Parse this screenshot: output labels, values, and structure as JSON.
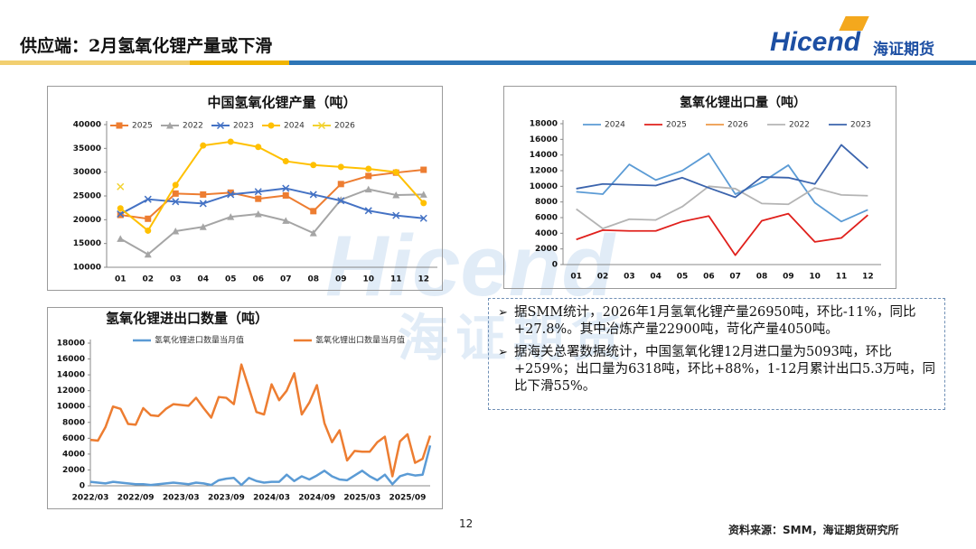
{
  "header": {
    "title": "供应端：2月氢氧化锂产量或下滑",
    "logo": "Hicend",
    "logo_cn": "海证期货"
  },
  "watermark": {
    "en": "Hicend",
    "cn": "海证期货"
  },
  "notes": [
    "据SMM统计，2026年1月氢氧化锂产量26950吨，环比-11%，同比+27.8%。其中冶炼产量22900吨，苛化产量4050吨。",
    "据海关总署数据统计，中国氢氧化锂12月进口量为5093吨，环比+259%；出口量为6318吨，环比+88%，1-12月累计出口5.3万吨，同比下滑55%。"
  ],
  "footer": {
    "page": "12",
    "source": "资料来源：SMM，海证期货研究所"
  },
  "chart_data": [
    {
      "type": "line",
      "title": "中国氢氧化锂产量（吨）",
      "categories": [
        "01",
        "02",
        "03",
        "04",
        "05",
        "06",
        "07",
        "08",
        "09",
        "10",
        "11",
        "12"
      ],
      "ylim": [
        10000,
        40000
      ],
      "yticks": [
        10000,
        15000,
        20000,
        25000,
        30000,
        35000,
        40000
      ],
      "series": [
        {
          "name": "2025",
          "color": "#ed7d31",
          "marker": "square",
          "values": [
            21000,
            20200,
            25500,
            25300,
            25700,
            24400,
            25100,
            21800,
            27500,
            29200,
            29900,
            30500
          ]
        },
        {
          "name": "2022",
          "color": "#a5a5a5",
          "marker": "triangle",
          "values": [
            16000,
            12700,
            17600,
            18500,
            20600,
            21200,
            19800,
            17200,
            24200,
            26400,
            25200,
            25300
          ]
        },
        {
          "name": "2023",
          "color": "#4472c4",
          "marker": "x",
          "values": [
            21200,
            24300,
            23800,
            23400,
            25300,
            25900,
            26600,
            25300,
            24000,
            21900,
            20900,
            20300
          ]
        },
        {
          "name": "2024",
          "color": "#ffc000",
          "marker": "circle",
          "values": [
            22400,
            17700,
            27300,
            35600,
            36400,
            35300,
            32300,
            31500,
            31100,
            30700,
            30000,
            23500
          ]
        },
        {
          "name": "2026",
          "color": "#f2d230",
          "marker": "x",
          "values": [
            26950,
            null,
            null,
            null,
            null,
            null,
            null,
            null,
            null,
            null,
            null,
            null
          ]
        }
      ]
    },
    {
      "type": "line",
      "title": "氢氧化锂出口量（吨）",
      "categories": [
        "01",
        "02",
        "03",
        "04",
        "05",
        "06",
        "07",
        "08",
        "09",
        "10",
        "11",
        "12"
      ],
      "ylim": [
        0,
        18000
      ],
      "yticks": [
        0,
        2000,
        4000,
        6000,
        8000,
        10000,
        12000,
        14000,
        16000,
        18000
      ],
      "series": [
        {
          "name": "2024",
          "color": "#5b9bd5",
          "values": [
            9300,
            9000,
            12800,
            10800,
            12000,
            14200,
            9000,
            10500,
            12700,
            7900,
            5500,
            7000
          ]
        },
        {
          "name": "2025",
          "color": "#e0201c",
          "values": [
            3200,
            4400,
            4300,
            4300,
            5500,
            6200,
            1200,
            5600,
            6500,
            2900,
            3400,
            6318
          ]
        },
        {
          "name": "2026",
          "color": "#ed9a4a",
          "values": [
            null,
            null,
            null,
            null,
            null,
            null,
            null,
            null,
            null,
            null,
            null,
            null
          ]
        },
        {
          "name": "2022",
          "color": "#b4b4b4",
          "values": [
            7100,
            4600,
            5800,
            5700,
            7400,
            10000,
            9700,
            7800,
            7700,
            9800,
            8900,
            8800
          ]
        },
        {
          "name": "2023",
          "color": "#3b64ad",
          "values": [
            9700,
            10300,
            10200,
            10100,
            11100,
            9800,
            8600,
            11200,
            11100,
            10300,
            15300,
            12300
          ]
        }
      ]
    },
    {
      "type": "line",
      "title": "氢氧化锂进出口数量（吨）",
      "categories": [
        "2022/03",
        null,
        null,
        null,
        null,
        null,
        "2022/09",
        null,
        null,
        null,
        null,
        null,
        "2023/03",
        null,
        null,
        null,
        null,
        null,
        "2023/09",
        null,
        null,
        null,
        null,
        null,
        "2024/03",
        null,
        null,
        null,
        null,
        null,
        "2024/09",
        null,
        null,
        null,
        null,
        null,
        "2025/03",
        null,
        null,
        null,
        null,
        null,
        "2025/09",
        null,
        null,
        null
      ],
      "ylim": [
        0,
        18000
      ],
      "yticks": [
        0,
        2000,
        4000,
        6000,
        8000,
        10000,
        12000,
        14000,
        16000,
        18000
      ],
      "series": [
        {
          "name": "氢氧化锂进口数量当月值",
          "color": "#5b9bd5",
          "values": [
            500,
            400,
            300,
            500,
            400,
            300,
            200,
            200,
            100,
            200,
            300,
            400,
            300,
            200,
            400,
            300,
            100,
            700,
            900,
            1000,
            100,
            1000,
            600,
            400,
            500,
            500,
            1400,
            600,
            1200,
            800,
            1300,
            1900,
            1200,
            800,
            700,
            1300,
            1900,
            1200,
            700,
            1400,
            200,
            1200,
            1500,
            1300,
            1400,
            5093
          ]
        },
        {
          "name": "氢氧化锂出口数量当月值",
          "color": "#ed7d31",
          "values": [
            5800,
            5700,
            7400,
            10000,
            9700,
            7800,
            7700,
            9800,
            8900,
            8800,
            9700,
            10300,
            10200,
            10100,
            11100,
            9800,
            8600,
            11200,
            11100,
            10300,
            15300,
            12300,
            9300,
            9000,
            12800,
            10800,
            12000,
            14200,
            9000,
            10500,
            12700,
            7900,
            5500,
            7000,
            3200,
            4400,
            4300,
            4300,
            5500,
            6200,
            1200,
            5600,
            6500,
            2900,
            3400,
            6318
          ]
        }
      ]
    }
  ]
}
